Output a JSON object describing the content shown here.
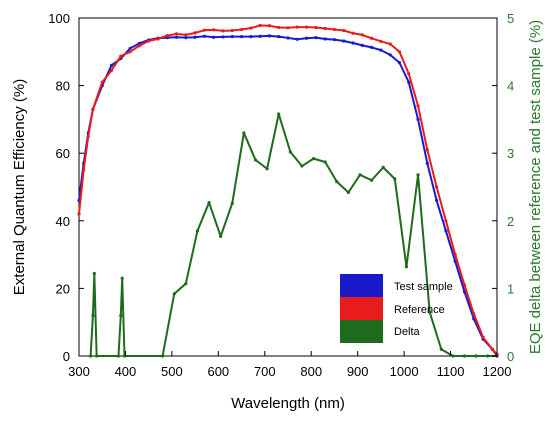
{
  "chart_data": {
    "type": "line",
    "xlabel": "Wavelength (nm)",
    "ylabel_left": "External Quantum Efficiency (%)",
    "ylabel_right": "EQE delta between reference and test sample (%)",
    "xlim": [
      300,
      1200
    ],
    "ylim_left": [
      0,
      100
    ],
    "ylim_right": [
      0,
      5
    ],
    "x_ticks": [
      "300",
      "400",
      "500",
      "600",
      "700",
      "800",
      "900",
      "1000",
      "1100",
      "1200"
    ],
    "y_left_ticks": [
      "0",
      "20",
      "40",
      "60",
      "80",
      "100"
    ],
    "y_right_ticks": [
      "0",
      "1",
      "2",
      "3",
      "4",
      "5"
    ],
    "grid": false,
    "legend_position": "bottom-right",
    "legend_labels": [
      "Test sample",
      "Reference",
      "Delta"
    ],
    "colors": {
      "test": "#1a1acc",
      "reference": "#e81c1c",
      "delta": "#1e6b1e",
      "right_axis": "#2a7a2a"
    },
    "series": [
      {
        "name": "Test sample",
        "axis": "left",
        "x": [
          300,
          310,
          320,
          330,
          350,
          370,
          390,
          410,
          430,
          450,
          470,
          490,
          510,
          530,
          550,
          570,
          590,
          610,
          630,
          650,
          670,
          690,
          710,
          730,
          750,
          770,
          790,
          810,
          830,
          850,
          870,
          890,
          910,
          930,
          950,
          970,
          990,
          1010,
          1030,
          1050,
          1070,
          1090,
          1110,
          1130,
          1150,
          1170,
          1190,
          1200
        ],
        "y": [
          46,
          57,
          66,
          73,
          80,
          86,
          88,
          91,
          92.5,
          93.5,
          94,
          94.2,
          94.3,
          94.2,
          94.3,
          94.6,
          94.3,
          94.4,
          94.5,
          94.5,
          94.5,
          94.6,
          94.7,
          94.5,
          94.1,
          93.7,
          94,
          94.2,
          93.8,
          93.6,
          93.2,
          92.6,
          91.9,
          91.3,
          90.5,
          89.1,
          86.8,
          81,
          70,
          57,
          46,
          37,
          28,
          19,
          11,
          5,
          2,
          0
        ]
      },
      {
        "name": "Reference",
        "axis": "left",
        "x": [
          300,
          310,
          320,
          330,
          350,
          370,
          390,
          410,
          430,
          450,
          470,
          490,
          510,
          530,
          550,
          570,
          590,
          610,
          630,
          650,
          670,
          690,
          710,
          730,
          750,
          770,
          790,
          810,
          830,
          850,
          870,
          890,
          910,
          930,
          950,
          970,
          990,
          1010,
          1030,
          1050,
          1070,
          1090,
          1110,
          1130,
          1150,
          1170,
          1190,
          1200
        ],
        "y": [
          42,
          55,
          65,
          73,
          81,
          84.5,
          88.7,
          90,
          91.8,
          93.2,
          93.8,
          94.8,
          95.3,
          95,
          95.6,
          96.4,
          96.5,
          96.2,
          96.3,
          96.6,
          97,
          97.8,
          97.7,
          97.2,
          97.1,
          97.3,
          97.3,
          97.2,
          96.9,
          96.6,
          96.3,
          95.5,
          95,
          94,
          93.1,
          92.3,
          90,
          83.5,
          74,
          61,
          50,
          40,
          30,
          21,
          12.5,
          5.5,
          2,
          0.5
        ]
      },
      {
        "name": "Delta",
        "axis": "right",
        "x": [
          325,
          330,
          333,
          338,
          385,
          390,
          393,
          398,
          480,
          505,
          530,
          555,
          580,
          605,
          630,
          655,
          680,
          705,
          730,
          755,
          780,
          805,
          830,
          855,
          880,
          905,
          930,
          955,
          980,
          1005,
          1030,
          1055,
          1080,
          1105,
          1130,
          1155,
          1180,
          1200
        ],
        "y": [
          0,
          0.6,
          1.22,
          0,
          0,
          0.6,
          1.15,
          0,
          0,
          0.92,
          1.07,
          1.85,
          2.27,
          1.77,
          2.26,
          3.3,
          2.9,
          2.77,
          3.58,
          3.02,
          2.81,
          2.92,
          2.87,
          2.58,
          2.42,
          2.68,
          2.6,
          2.79,
          2.62,
          1.32,
          2.68,
          0.65,
          0.1,
          0,
          0,
          0,
          0,
          0
        ]
      }
    ]
  }
}
